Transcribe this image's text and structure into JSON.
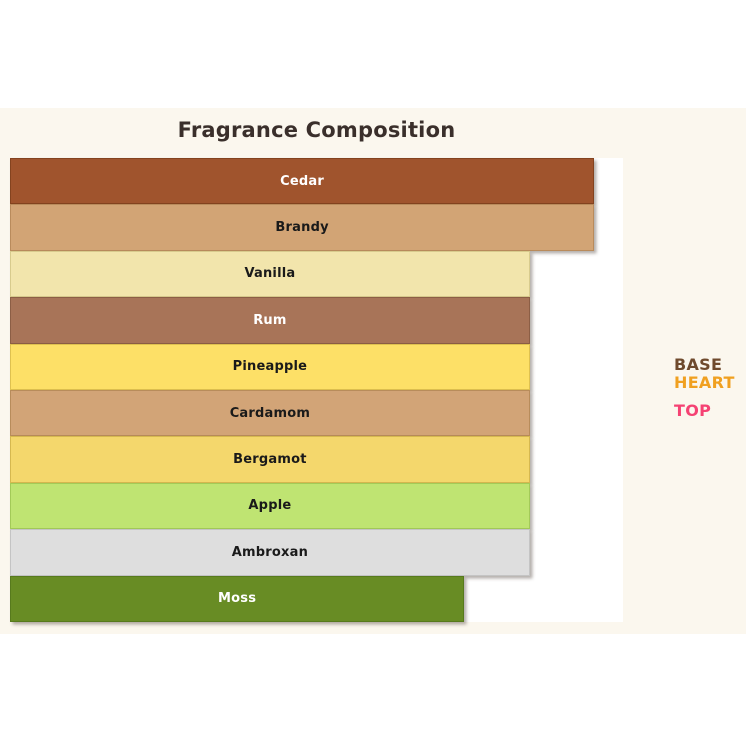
{
  "page": {
    "background": "#FFFFFF",
    "figure_background": "#FBF7EE",
    "plot_background": "#FFFFFF"
  },
  "title": {
    "text": "Fragrance Composition",
    "color": "#3A2F2B"
  },
  "chart_data": {
    "type": "bar",
    "orientation": "horizontal",
    "title": "Fragrance Composition",
    "categories": [
      "Cedar",
      "Brandy",
      "Vanilla",
      "Rum",
      "Pineapple",
      "Cardamom",
      "Bergamot",
      "Apple",
      "Ambroxan",
      "Moss"
    ],
    "values_pct_of_axis": [
      95.3,
      95.3,
      84.8,
      84.8,
      84.8,
      84.8,
      84.8,
      84.8,
      84.8,
      74.1
    ],
    "axes": {
      "x_ticks_visible": false,
      "y_ticks_visible": false,
      "grid": false,
      "bars_fill_full_height": true
    },
    "bars": [
      {
        "label": "Cedar",
        "value_pct": 95.3,
        "fill": "#A0542D",
        "border": "#84431F",
        "label_color": "#FFFFFF"
      },
      {
        "label": "Brandy",
        "value_pct": 95.3,
        "fill": "#D2A475",
        "border": "#B98B5C",
        "label_color": "#1A1A1A"
      },
      {
        "label": "Vanilla",
        "value_pct": 84.8,
        "fill": "#F2E5AC",
        "border": "#D8CB8D",
        "label_color": "#1A1A1A"
      },
      {
        "label": "Rum",
        "value_pct": 84.8,
        "fill": "#A87458",
        "border": "#8C5E45",
        "label_color": "#FFFFFF"
      },
      {
        "label": "Pineapple",
        "value_pct": 84.8,
        "fill": "#FDE067",
        "border": "#DFC14F",
        "label_color": "#1A1A1A"
      },
      {
        "label": "Cardamom",
        "value_pct": 84.8,
        "fill": "#D2A477",
        "border": "#B88C5B",
        "label_color": "#1A1A1A"
      },
      {
        "label": "Bergamot",
        "value_pct": 84.8,
        "fill": "#F4D76C",
        "border": "#D6B84F",
        "label_color": "#1A1A1A"
      },
      {
        "label": "Apple",
        "value_pct": 84.8,
        "fill": "#BFE472",
        "border": "#A3CA58",
        "label_color": "#1A1A1A"
      },
      {
        "label": "Ambroxan",
        "value_pct": 84.8,
        "fill": "#DEDEDE",
        "border": "#C4C4C4",
        "label_color": "#1A1A1A"
      },
      {
        "label": "Moss",
        "value_pct": 74.1,
        "fill": "#688C24",
        "border": "#577A1D",
        "label_color": "#FFFFFF"
      }
    ],
    "legend": {
      "position": "right",
      "entries": [
        {
          "label": "BASE",
          "color": "#6F4A2D",
          "gap_before": false
        },
        {
          "label": "HEART",
          "color": "#F0A020",
          "gap_before": false
        },
        {
          "label": "TOP",
          "color": "#F54273",
          "gap_before": true
        }
      ]
    }
  }
}
